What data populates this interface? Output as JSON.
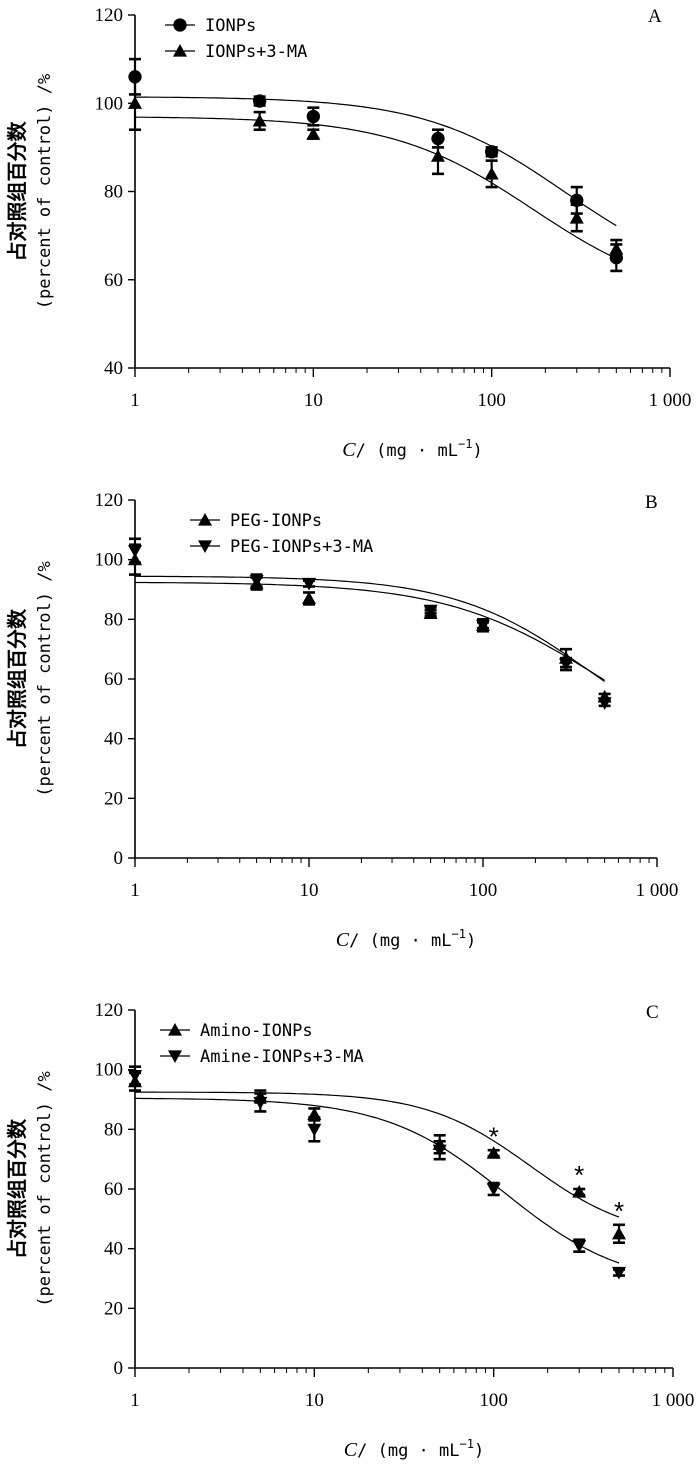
{
  "chart_data": [
    {
      "type": "scatter",
      "panel_letter": "A",
      "title": "",
      "ylabel_cn": "占对照组百分数",
      "ylabel_en": "(percent of control) /%",
      "xlabel_var": "C",
      "xlabel_unit": "/ (mg · mL",
      "xlabel_exp": "−1",
      "xlabel_close": ")",
      "xscale": "log",
      "xlim": [
        1,
        1000
      ],
      "ylim": [
        40,
        120
      ],
      "yticks": [
        40,
        60,
        80,
        100,
        120
      ],
      "xticks": [
        {
          "value": 1,
          "label": "1"
        },
        {
          "value": 10,
          "label": "10"
        },
        {
          "value": 100,
          "label": "100"
        },
        {
          "value": 1000,
          "label": "1 000"
        }
      ],
      "legend_position": "top-left",
      "series": [
        {
          "name": "IONPs",
          "marker": "circle",
          "x": [
            1,
            5,
            10,
            50,
            100,
            300,
            500
          ],
          "y": [
            106,
            100.5,
            97,
            92,
            89,
            78,
            65
          ],
          "err": [
            4,
            1,
            2,
            2,
            1,
            3,
            3
          ],
          "fit": {
            "bottom": 58,
            "top": 101.5,
            "ec50": 260,
            "hill": 1.1
          }
        },
        {
          "name": "IONPs+3-MA",
          "marker": "triangle-up",
          "x": [
            1,
            5,
            10,
            50,
            100,
            300,
            500
          ],
          "y": [
            100,
            96,
            93,
            88,
            84,
            74,
            67
          ],
          "err": [
            6,
            2,
            1,
            4,
            3,
            3,
            2
          ],
          "fit": {
            "bottom": 55,
            "top": 97,
            "ec50": 170,
            "hill": 1.1
          }
        }
      ],
      "annotations": []
    },
    {
      "type": "scatter",
      "panel_letter": "B",
      "title": "",
      "ylabel_cn": "占对照组百分数",
      "ylabel_en": "(percent of control) /%",
      "xlabel_var": "C",
      "xlabel_unit": "/ (mg · mL",
      "xlabel_exp": "−1",
      "xlabel_close": ")",
      "xscale": "log",
      "xlim": [
        1,
        1000
      ],
      "ylim": [
        0,
        120
      ],
      "yticks": [
        0,
        20,
        40,
        60,
        80,
        100,
        120
      ],
      "xticks": [
        {
          "value": 1,
          "label": "1"
        },
        {
          "value": 10,
          "label": "10"
        },
        {
          "value": 100,
          "label": "100"
        },
        {
          "value": 1000,
          "label": "1 000"
        }
      ],
      "legend_position": "top-left",
      "series": [
        {
          "name": "PEG-IONPs",
          "marker": "triangle-up",
          "x": [
            1,
            5,
            10,
            50,
            100,
            300,
            500
          ],
          "y": [
            100,
            92,
            87,
            82,
            78,
            67,
            54
          ],
          "err": [
            5,
            2,
            2,
            1,
            1,
            3,
            1
          ],
          "fit": {
            "bottom": 30,
            "top": 92.5,
            "ec50": 450,
            "hill": 1.0
          }
        },
        {
          "name": "PEG-IONPs+3-MA",
          "marker": "triangle-down",
          "x": [
            1,
            5,
            10,
            50,
            100,
            300,
            500
          ],
          "y": [
            103,
            93,
            92,
            83,
            78,
            65,
            52
          ],
          "err": [
            4,
            2,
            1,
            1,
            2,
            2,
            1
          ],
          "fit": {
            "bottom": 30,
            "top": 94.5,
            "ec50": 420,
            "hill": 1.1
          }
        }
      ],
      "annotations": []
    },
    {
      "type": "scatter",
      "panel_letter": "C",
      "title": "",
      "ylabel_cn": "占对照组百分数",
      "ylabel_en": "(percent of control) /%",
      "xlabel_var": "C",
      "xlabel_unit": "/ (mg · mL",
      "xlabel_exp": "−1",
      "xlabel_close": ")",
      "xscale": "log",
      "xlim": [
        1,
        1000
      ],
      "ylim": [
        0,
        120
      ],
      "yticks": [
        0,
        20,
        40,
        60,
        80,
        100,
        120
      ],
      "xticks": [
        {
          "value": 1,
          "label": "1"
        },
        {
          "value": 10,
          "label": "10"
        },
        {
          "value": 100,
          "label": "100"
        },
        {
          "value": 1000,
          "label": "1 000"
        }
      ],
      "legend_position": "top-left",
      "series": [
        {
          "name": "Amino-IONPs",
          "marker": "triangle-up",
          "x": [
            1,
            5,
            10,
            50,
            100,
            300,
            500
          ],
          "y": [
            96,
            91,
            85,
            75,
            72,
            59,
            45
          ],
          "err": [
            3,
            2,
            2,
            3,
            1,
            1,
            3
          ],
          "fit": {
            "bottom": 43,
            "top": 92.5,
            "ec50": 160,
            "hill": 1.5
          }
        },
        {
          "name": "Amine-IONPs+3-MA",
          "marker": "triangle-down",
          "x": [
            1,
            5,
            10,
            50,
            100,
            300,
            500
          ],
          "y": [
            98,
            89,
            80,
            73,
            60,
            41,
            32
          ],
          "err": [
            3,
            3,
            4,
            3,
            2,
            2,
            1
          ],
          "fit": {
            "bottom": 27,
            "top": 90.5,
            "ec50": 115,
            "hill": 1.3
          }
        }
      ],
      "annotations": [
        {
          "text": "*",
          "x": 100,
          "y": 78
        },
        {
          "text": "*",
          "x": 300,
          "y": 65
        },
        {
          "text": "*",
          "x": 500,
          "y": 53
        }
      ]
    }
  ]
}
